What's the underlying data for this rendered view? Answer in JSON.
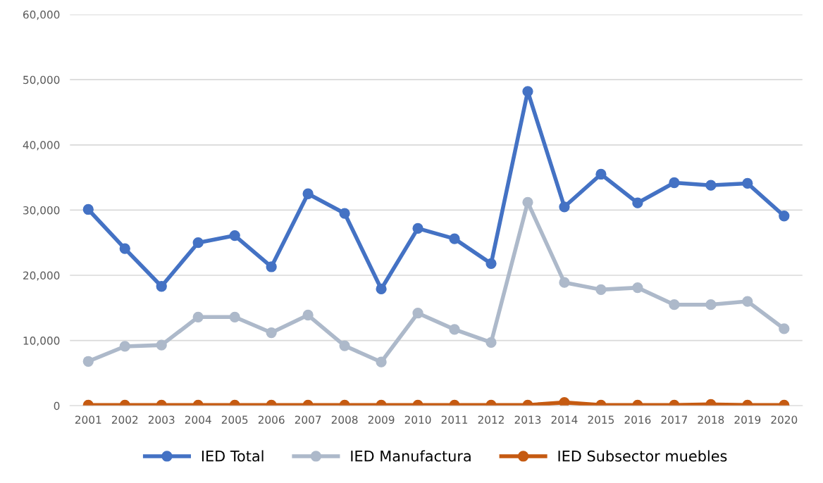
{
  "chart_data": {
    "type": "line",
    "categories": [
      "2001",
      "2002",
      "2003",
      "2004",
      "2005",
      "2006",
      "2007",
      "2008",
      "2009",
      "2010",
      "2011",
      "2012",
      "2013",
      "2014",
      "2015",
      "2016",
      "2017",
      "2018",
      "2019",
      "2020"
    ],
    "series": [
      {
        "name": "IED Total",
        "color": "#4472c4",
        "values": [
          30100,
          24100,
          18300,
          25000,
          26100,
          21300,
          32500,
          29500,
          17900,
          27200,
          25600,
          21800,
          48200,
          30500,
          35500,
          31100,
          34200,
          33800,
          34100,
          29100
        ]
      },
      {
        "name": "IED Manufactura",
        "color": "#adb9ca",
        "values": [
          6800,
          9100,
          9300,
          13600,
          13600,
          11200,
          13900,
          9200,
          6700,
          14200,
          11700,
          9700,
          31200,
          18900,
          17800,
          18100,
          15500,
          15500,
          16000,
          11800
        ]
      },
      {
        "name": "IED Subsector muebles",
        "color": "#c55a11",
        "values": [
          100,
          100,
          100,
          100,
          100,
          100,
          100,
          100,
          100,
          100,
          100,
          100,
          100,
          500,
          100,
          100,
          100,
          200,
          100,
          100
        ]
      }
    ],
    "ylim": [
      0,
      60000
    ],
    "yticks": [
      {
        "value": 0,
        "label": "0"
      },
      {
        "value": 10000,
        "label": "10,000"
      },
      {
        "value": 20000,
        "label": "20,000"
      },
      {
        "value": 30000,
        "label": "30,000"
      },
      {
        "value": 40000,
        "label": "40,000"
      },
      {
        "value": 50000,
        "label": "50,000"
      },
      {
        "value": 60000,
        "label": "60,000"
      }
    ],
    "grid": "y",
    "legend": "bottom",
    "marker": "circle",
    "line_style": "solid"
  }
}
